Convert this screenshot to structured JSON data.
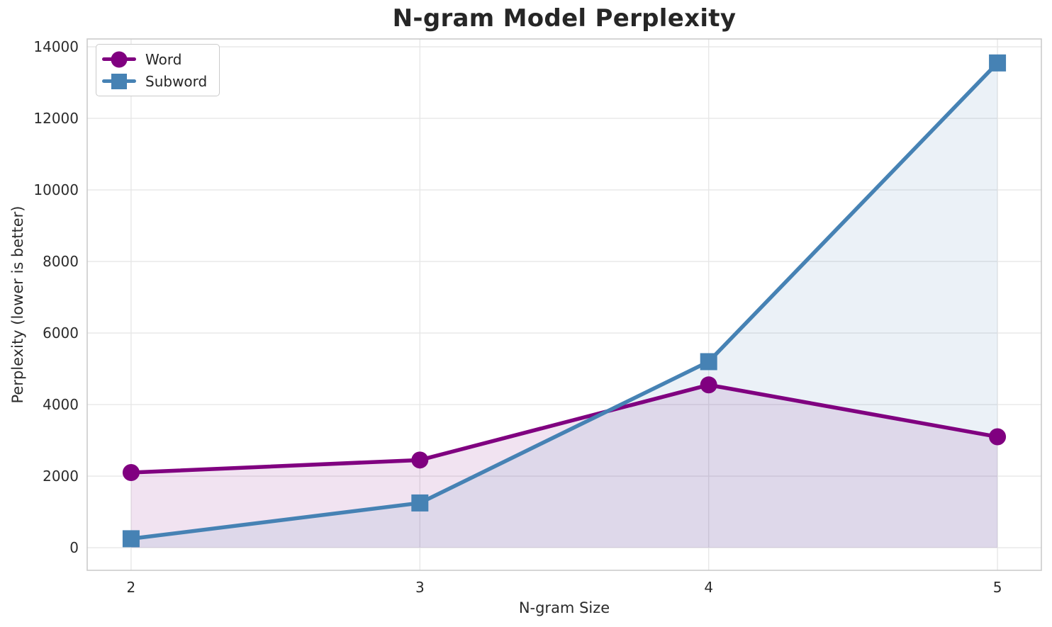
{
  "chart_data": {
    "type": "line",
    "title": "N-gram Model Perplexity",
    "xlabel": "N-gram Size",
    "ylabel": "Perplexity (lower is better)",
    "x": [
      2,
      3,
      4,
      5
    ],
    "series": [
      {
        "name": "Word",
        "marker": "circle",
        "color": "#800080",
        "values": [
          2100,
          2450,
          4550,
          3100
        ]
      },
      {
        "name": "Subword",
        "marker": "square",
        "color": "#4682B4",
        "values": [
          250,
          1250,
          5200,
          13550
        ]
      }
    ],
    "xticks": [
      2,
      3,
      4,
      5
    ],
    "yticks": [
      0,
      2000,
      4000,
      6000,
      8000,
      10000,
      12000,
      14000
    ],
    "xlim": [
      1.848,
      5.152
    ],
    "ylim": [
      -633,
      14220
    ],
    "fill_to_zero": true,
    "fill_alpha": 0.11,
    "grid": true,
    "legend_position": "upper-left",
    "grid_color": "#E7E7E7",
    "spine_color": "#CBCBCB",
    "tick_color": "#2B2B2B",
    "title_color": "#262626"
  }
}
